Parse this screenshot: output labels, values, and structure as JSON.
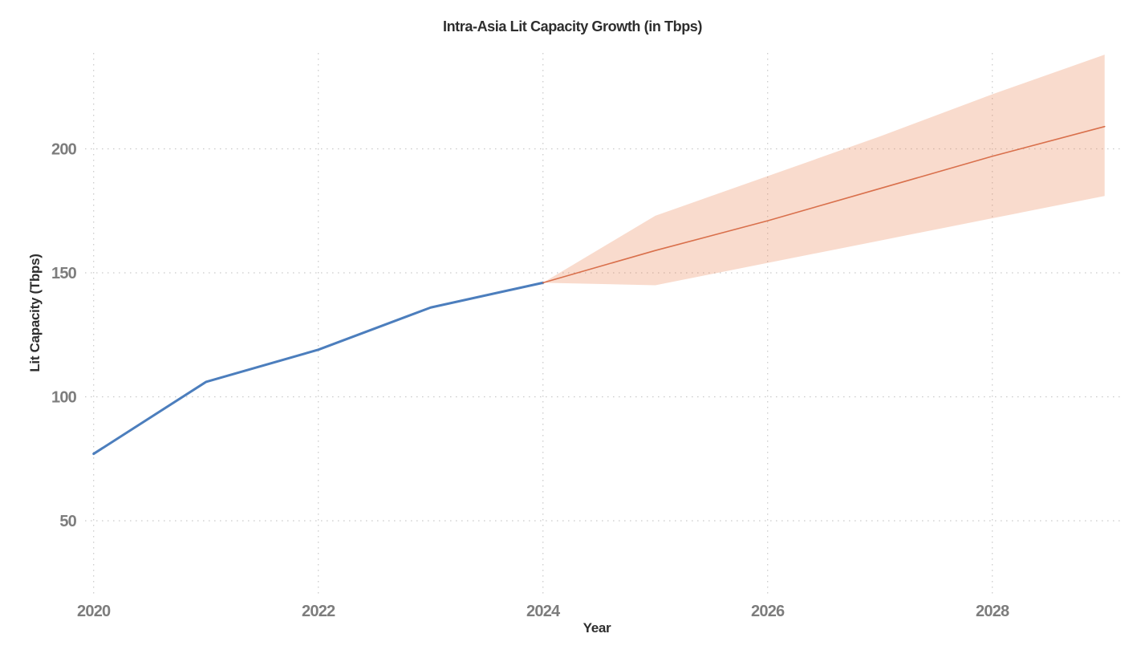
{
  "chart_data": {
    "type": "line",
    "title": "Intra-Asia Lit Capacity Growth (in Tbps)",
    "xlabel": "Year",
    "ylabel": "Lit Capacity (Tbps)",
    "x_ticks": [
      2020,
      2022,
      2024,
      2026,
      2028
    ],
    "y_ticks": [
      50,
      100,
      150,
      200
    ],
    "xlim": [
      2019.97,
      2029.17
    ],
    "ylim": [
      19,
      239
    ],
    "grid": {
      "visible": true,
      "style": "dotted",
      "color": "#c9c9c9"
    },
    "legend": "none",
    "series": [
      {
        "name": "Historical lit capacity",
        "type": "line",
        "color": "#4c7ebd",
        "line_width": 3,
        "x": [
          2020,
          2021,
          2022,
          2023,
          2024
        ],
        "y": [
          77,
          106,
          119,
          136,
          146
        ]
      },
      {
        "name": "Forecast lit capacity",
        "type": "line",
        "color": "#d9704c",
        "line_width": 1.6,
        "x": [
          2024,
          2025,
          2026,
          2027,
          2028,
          2029
        ],
        "y": [
          146,
          159,
          171,
          184,
          197,
          209
        ]
      },
      {
        "name": "Forecast confidence band",
        "type": "band",
        "fill": "#e87e4a",
        "fill_opacity": 0.28,
        "x": [
          2024,
          2025,
          2026,
          2027,
          2028,
          2029
        ],
        "y_upper": [
          146,
          173,
          189,
          205,
          222,
          238
        ],
        "y_lower": [
          146,
          145,
          154,
          163,
          172,
          181
        ]
      }
    ],
    "text_colors": {
      "title": "#2e2e2e",
      "axis_label": "#2e2e2e",
      "tick": "#7d7d7d"
    }
  }
}
